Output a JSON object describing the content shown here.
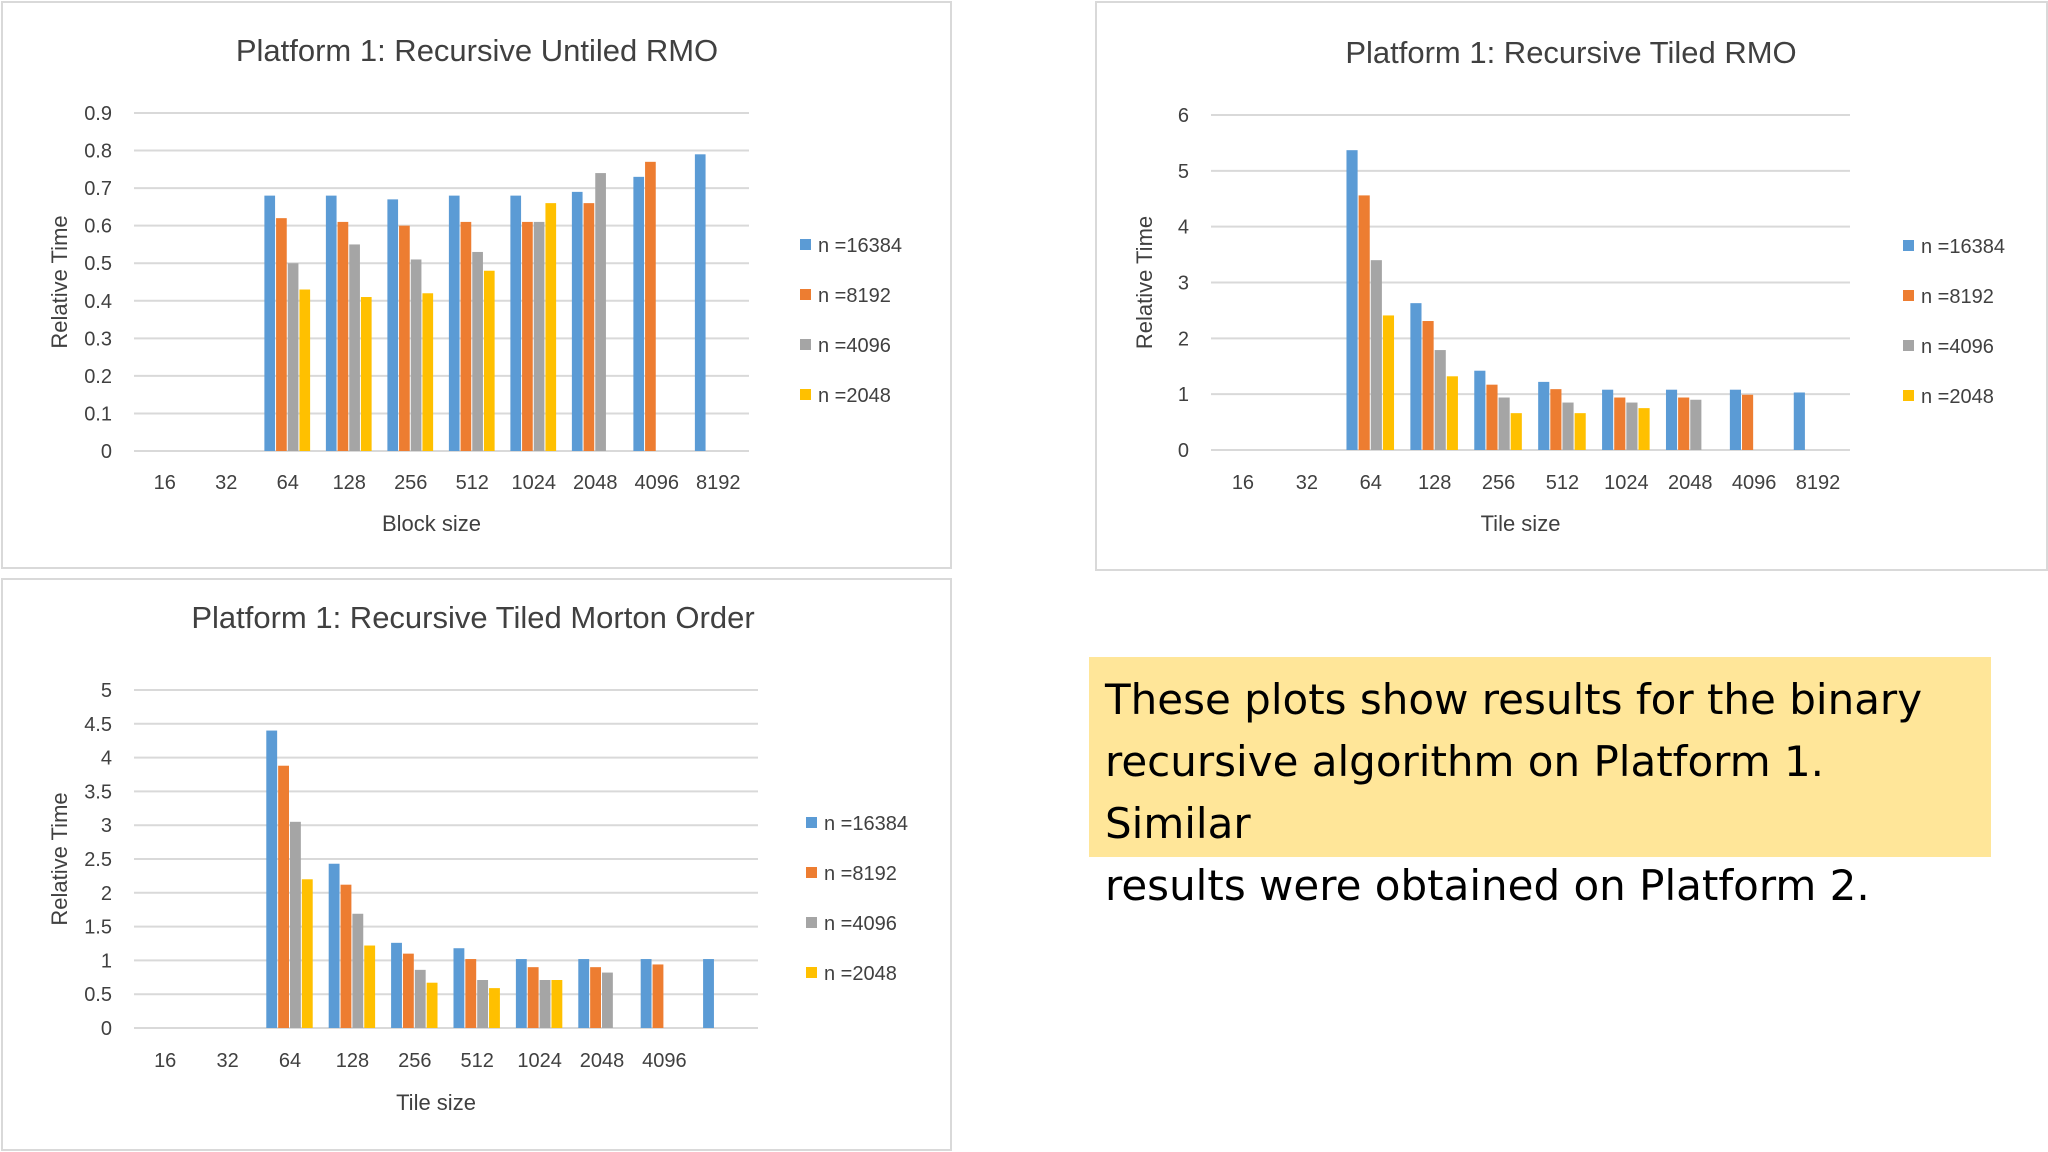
{
  "colors": {
    "n16384": "#5b9bd5",
    "n8192": "#ed7d31",
    "n4096": "#a5a5a5",
    "n2048": "#ffc000"
  },
  "note": {
    "line1": "These plots show results for the binary",
    "line2": "recursive algorithm on Platform 1. Similar",
    "line3": "results were obtained on Platform 2."
  },
  "chart_data": [
    {
      "type": "bar",
      "title": "Platform 1: Recursive Untiled RMO",
      "xlabel": "Block size",
      "ylabel": "Relative Time",
      "ylim": [
        0,
        0.9
      ],
      "yticks": [
        "0",
        "0.1",
        "0.2",
        "0.3",
        "0.4",
        "0.5",
        "0.6",
        "0.7",
        "0.8",
        "0.9"
      ],
      "grid": true,
      "legend_position": "right",
      "categories": [
        "16",
        "32",
        "64",
        "128",
        "256",
        "512",
        "1024",
        "2048",
        "4096",
        "8192"
      ],
      "series": [
        {
          "name": "n  =16384",
          "values": [
            null,
            null,
            0.68,
            0.68,
            0.67,
            0.68,
            0.68,
            0.69,
            0.73,
            0.79
          ]
        },
        {
          "name": "n =8192",
          "values": [
            null,
            null,
            0.62,
            0.61,
            0.6,
            0.61,
            0.61,
            0.66,
            0.77,
            null
          ]
        },
        {
          "name": "n =4096",
          "values": [
            null,
            null,
            0.5,
            0.55,
            0.51,
            0.53,
            0.61,
            0.74,
            null,
            null
          ]
        },
        {
          "name": "n =2048",
          "values": [
            null,
            null,
            0.43,
            0.41,
            0.42,
            0.48,
            0.66,
            null,
            null,
            null
          ]
        }
      ]
    },
    {
      "type": "bar",
      "title": "Platform 1: Recursive Tiled RMO",
      "xlabel": "Tile size",
      "ylabel": "Relative Time",
      "ylim": [
        0,
        6
      ],
      "yticks": [
        "0",
        "1",
        "2",
        "3",
        "4",
        "5",
        "6"
      ],
      "grid": true,
      "legend_position": "right",
      "categories": [
        "16",
        "32",
        "64",
        "128",
        "256",
        "512",
        "1024",
        "2048",
        "4096",
        "8192"
      ],
      "series": [
        {
          "name": "n =16384",
          "values": [
            null,
            null,
            5.37,
            2.63,
            1.42,
            1.22,
            1.08,
            1.08,
            1.08,
            1.03
          ]
        },
        {
          "name": "n =8192",
          "values": [
            null,
            null,
            4.56,
            2.31,
            1.17,
            1.09,
            0.94,
            0.94,
            0.99,
            null
          ]
        },
        {
          "name": "n =4096",
          "values": [
            null,
            null,
            3.4,
            1.79,
            0.94,
            0.85,
            0.85,
            0.9,
            null,
            null
          ]
        },
        {
          "name": "n =2048",
          "values": [
            null,
            null,
            2.41,
            1.32,
            0.66,
            0.66,
            0.75,
            null,
            null,
            null
          ]
        }
      ]
    },
    {
      "type": "bar",
      "title": "Platform 1: Recursive Tiled Morton Order",
      "xlabel": "Tile size",
      "ylabel": "Relative Time",
      "ylim": [
        0,
        5
      ],
      "yticks": [
        "0",
        "0.5",
        "1",
        "1.5",
        "2",
        "2.5",
        "3",
        "3.5",
        "4",
        "4.5",
        "5"
      ],
      "grid": true,
      "legend_position": "right",
      "categories": [
        "16",
        "32",
        "64",
        "128",
        "256",
        "512",
        "1024",
        "2048",
        "4096",
        ""
      ],
      "series": [
        {
          "name": "n =16384",
          "values": [
            null,
            null,
            4.4,
            2.43,
            1.26,
            1.18,
            1.02,
            1.02,
            1.02,
            1.02
          ]
        },
        {
          "name": "n =8192",
          "values": [
            null,
            null,
            3.88,
            2.12,
            1.1,
            1.02,
            0.9,
            0.9,
            0.94,
            null
          ]
        },
        {
          "name": "n =4096",
          "values": [
            null,
            null,
            3.05,
            1.69,
            0.86,
            0.71,
            0.71,
            0.82,
            null,
            null
          ]
        },
        {
          "name": "n =2048",
          "values": [
            null,
            null,
            2.2,
            1.22,
            0.67,
            0.59,
            0.71,
            null,
            null,
            null
          ]
        }
      ]
    }
  ]
}
